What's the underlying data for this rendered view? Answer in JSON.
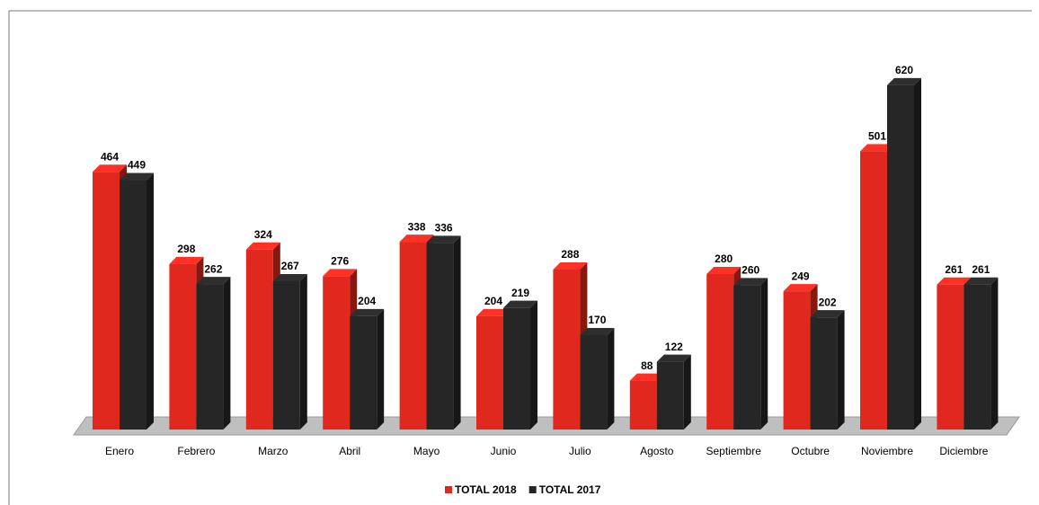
{
  "chart_data": {
    "type": "bar3d",
    "categories": [
      "Enero",
      "Febrero",
      "Marzo",
      "Abril",
      "Mayo",
      "Junio",
      "Julio",
      "Agosto",
      "Septiembre",
      "Octubre",
      "Noviembre",
      "Diciembre"
    ],
    "series": [
      {
        "name": "TOTAL 2018",
        "color": "#e0281e",
        "values": [
          464,
          298,
          324,
          276,
          338,
          204,
          288,
          88,
          280,
          249,
          501,
          261
        ]
      },
      {
        "name": "TOTAL 2017",
        "color": "#262626",
        "values": [
          449,
          262,
          267,
          204,
          336,
          219,
          170,
          122,
          260,
          202,
          620,
          261
        ]
      }
    ],
    "legend": "bottom"
  }
}
